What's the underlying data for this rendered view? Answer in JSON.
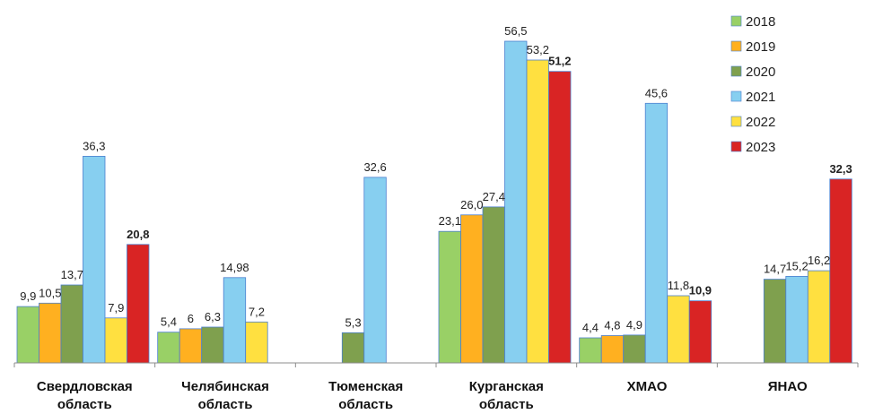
{
  "chart_data": {
    "type": "bar",
    "categories": [
      [
        "Свердловская",
        "область"
      ],
      [
        "Челябинская",
        "область"
      ],
      [
        "Тюменская",
        "область"
      ],
      [
        "Курганская",
        "область"
      ],
      [
        "ХМАО"
      ],
      [
        "ЯНАО"
      ]
    ],
    "ylim": [
      0,
      60
    ],
    "legend_position": "top-right",
    "grid": false,
    "series": [
      {
        "name": "2018",
        "color": "#99D066",
        "bold_labels": false,
        "values": [
          9.9,
          5.4,
          null,
          23.1,
          4.4,
          null
        ],
        "labels": [
          "9,9",
          "5,4",
          "",
          "23,1",
          "4,4",
          ""
        ]
      },
      {
        "name": "2019",
        "color": "#FFB020",
        "bold_labels": false,
        "values": [
          10.5,
          6,
          null,
          26.0,
          4.8,
          null
        ],
        "labels": [
          "10,5",
          "6",
          "",
          "26,0",
          "4,8",
          ""
        ]
      },
      {
        "name": "2020",
        "color": "#7FA04E",
        "bold_labels": false,
        "values": [
          13.7,
          6.3,
          5.3,
          27.4,
          4.9,
          14.7
        ],
        "labels": [
          "13,7",
          "6,3",
          "5,3",
          "27,4",
          "4,9",
          "14,7"
        ]
      },
      {
        "name": "2021",
        "color": "#87CFF0",
        "bold_labels": false,
        "values": [
          36.3,
          14.98,
          32.6,
          56.5,
          45.6,
          15.2
        ],
        "labels": [
          "36,3",
          "14,98",
          "32,6",
          "56,5",
          "45,6",
          "15,2"
        ]
      },
      {
        "name": "2022",
        "color": "#FFE040",
        "bold_labels": false,
        "values": [
          7.9,
          7.2,
          null,
          53.2,
          11.8,
          16.2
        ],
        "labels": [
          "7,9",
          "7,2",
          "",
          "53,2",
          "11,8",
          "16,2"
        ]
      },
      {
        "name": "2023",
        "color": "#D92424",
        "bold_labels": true,
        "values": [
          20.8,
          null,
          null,
          51.2,
          10.9,
          32.3
        ],
        "labels": [
          "20,8",
          "",
          "",
          "51,2",
          "10,9",
          "32,3"
        ]
      }
    ]
  }
}
